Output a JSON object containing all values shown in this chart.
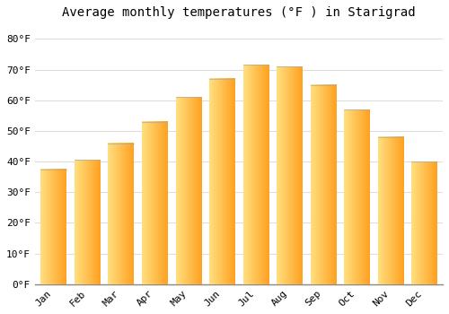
{
  "title": "Average monthly temperatures (°F ) in Starigrad",
  "months": [
    "Jan",
    "Feb",
    "Mar",
    "Apr",
    "May",
    "Jun",
    "Jul",
    "Aug",
    "Sep",
    "Oct",
    "Nov",
    "Dec"
  ],
  "values": [
    37.5,
    40.5,
    46.0,
    53.0,
    61.0,
    67.0,
    71.5,
    71.0,
    65.0,
    57.0,
    48.0,
    40.0
  ],
  "bar_color_light": "#FFE080",
  "bar_color_dark": "#FFA020",
  "ylim": [
    0,
    85
  ],
  "yticks": [
    0,
    10,
    20,
    30,
    40,
    50,
    60,
    70,
    80
  ],
  "ytick_labels": [
    "0°F",
    "10°F",
    "20°F",
    "30°F",
    "40°F",
    "50°F",
    "60°F",
    "70°F",
    "80°F"
  ],
  "background_color": "#FFFFFF",
  "grid_color": "#DDDDDD",
  "title_fontsize": 10,
  "tick_fontsize": 8,
  "font_family": "monospace",
  "bar_width": 0.75,
  "bar_gap": 0.05
}
